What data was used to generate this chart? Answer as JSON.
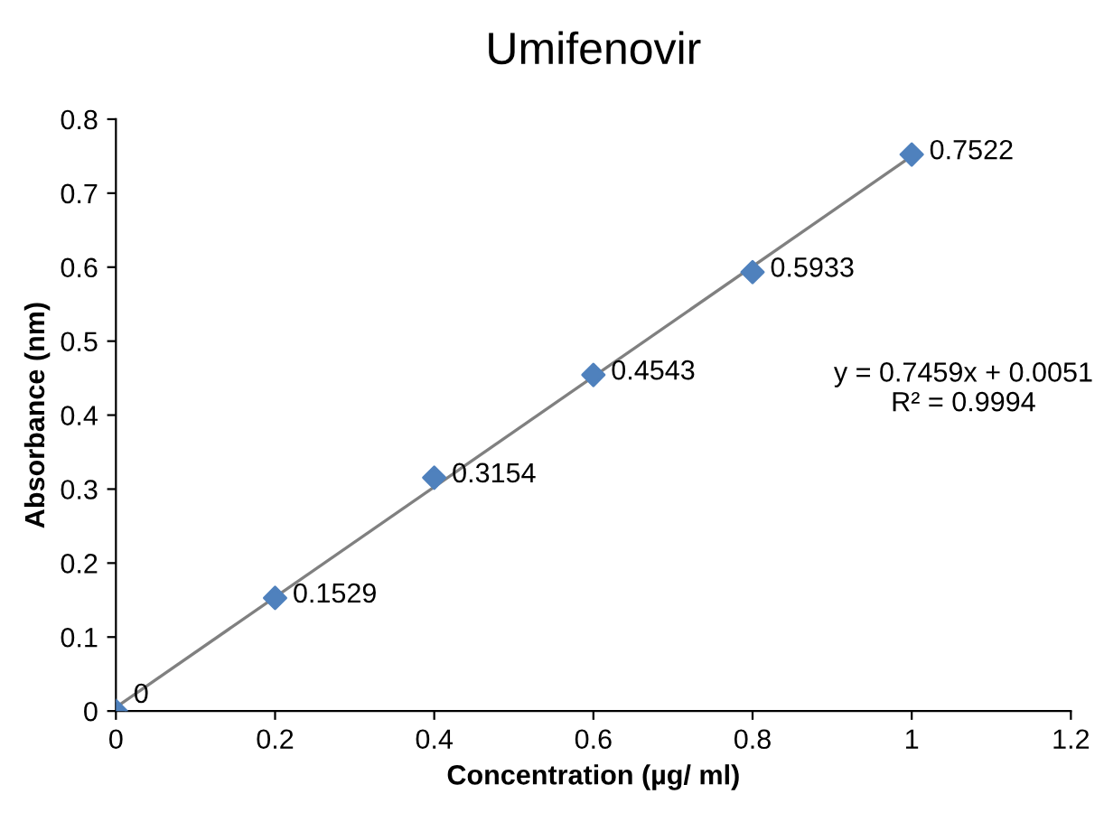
{
  "chart_data": {
    "type": "scatter",
    "title": "Umifenovir",
    "xlabel": "Concentration (µg/ ml)",
    "ylabel": "Absorbance (nm)",
    "series": [
      {
        "x": [
          0,
          0.2,
          0.4,
          0.6,
          0.8,
          1
        ],
        "values": [
          0,
          0.1529,
          0.3154,
          0.4543,
          0.5933,
          0.7522
        ],
        "color": "#4f81bd",
        "marker": "diamond",
        "data_labels": true
      },
      {
        "type": "line",
        "x": [
          0,
          1
        ],
        "values": [
          0.005,
          0.75
        ],
        "color": "#808080",
        "marker": "none",
        "line_style": "solid"
      }
    ],
    "annotations": [
      "y = 0.7459x + 0.0051",
      "R² = 0.9994"
    ],
    "xlim": [
      0,
      1.2
    ],
    "xticks": [
      0,
      0.2,
      0.4,
      0.6,
      0.8,
      1,
      1.2
    ],
    "ylim": [
      0,
      0.8
    ],
    "yticks": [
      0,
      0.1,
      0.2,
      0.3,
      0.4,
      0.5,
      0.6,
      0.7,
      0.8
    ],
    "grid": false,
    "legend": false
  }
}
